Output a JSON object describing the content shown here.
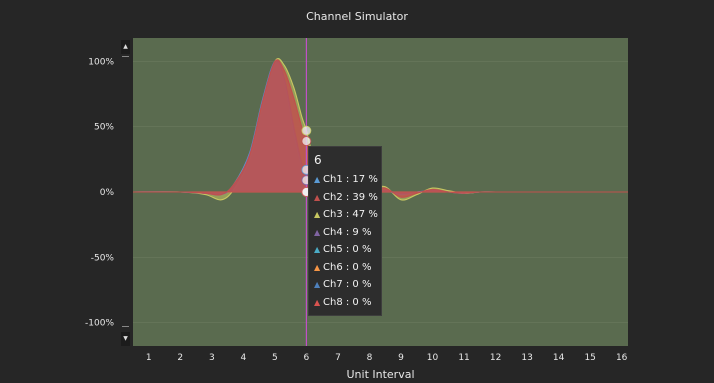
{
  "window": {
    "title": "Channel Simulator"
  },
  "chart_data": {
    "type": "area",
    "title": "",
    "xlabel": "Unit Interval",
    "ylabel": "",
    "xlim": [
      0.5,
      16.2
    ],
    "ylim": [
      -118,
      118
    ],
    "x_ticks": [
      1,
      2,
      3,
      4,
      5,
      6,
      7,
      8,
      9,
      10,
      11,
      12,
      13,
      14,
      15,
      16
    ],
    "y_ticks": [
      {
        "value": 100,
        "label": "100%"
      },
      {
        "value": 50,
        "label": "50%"
      },
      {
        "value": 0,
        "label": "0%"
      },
      {
        "value": -50,
        "label": "-50%"
      },
      {
        "value": -100,
        "label": "-100%"
      }
    ],
    "cursor_x": 6,
    "series": [
      {
        "name": "Ch1",
        "color": "#5b9bd5",
        "x": [
          0.5,
          2,
          2.8,
          3.3,
          3.7,
          4.2,
          4.6,
          5,
          5.3,
          5.6,
          5.85,
          6,
          6.2,
          6.5,
          7,
          7.5,
          8,
          8.5,
          9,
          9.5,
          10,
          10.5,
          11,
          11.5,
          12,
          13,
          14,
          15,
          16.2
        ],
        "y": [
          0,
          0,
          -1,
          -2,
          6,
          30,
          70,
          100,
          85,
          45,
          20,
          17,
          7,
          1,
          -2,
          -1,
          0,
          1,
          -2,
          0,
          1,
          0,
          -1,
          0,
          0,
          0,
          0,
          0,
          0
        ]
      },
      {
        "name": "Ch2",
        "color": "#c0504d",
        "x": [
          0.5,
          2,
          2.8,
          3.3,
          3.7,
          4.2,
          4.6,
          5,
          5.3,
          5.6,
          5.85,
          6,
          6.2,
          6.5,
          7,
          7.5,
          8,
          8.5,
          9,
          9.5,
          10,
          10.5,
          11,
          11.5,
          12,
          13,
          14,
          15,
          16.2
        ],
        "y": [
          0,
          0,
          -1,
          -2,
          6,
          28,
          68,
          100,
          93,
          72,
          50,
          39,
          20,
          5,
          -2,
          -1,
          1,
          3,
          -4,
          -1,
          2,
          0,
          -1,
          0,
          0,
          0,
          0,
          0,
          0
        ]
      },
      {
        "name": "Ch3",
        "color": "#c8c862",
        "x": [
          0.5,
          2,
          2.8,
          3.3,
          3.7,
          4.2,
          4.6,
          5,
          5.3,
          5.6,
          5.85,
          6,
          6.2,
          6.5,
          7,
          7.5,
          8,
          8.5,
          9,
          9.5,
          10,
          10.5,
          11,
          11.5,
          12,
          13,
          14,
          15,
          16.2
        ],
        "y": [
          0,
          0,
          -2,
          -6,
          2,
          25,
          66,
          100,
          97,
          80,
          58,
          47,
          28,
          8,
          -3,
          -2,
          2,
          4,
          -6,
          -2,
          3,
          1,
          -1,
          0,
          0,
          0,
          0,
          0,
          0
        ]
      },
      {
        "name": "Ch4",
        "color": "#8064a2",
        "x": [
          0.5,
          2,
          2.8,
          3.3,
          3.7,
          4.2,
          4.6,
          5,
          5.3,
          5.6,
          5.85,
          6,
          6.2,
          6.5,
          7,
          7.5,
          8,
          8.5,
          9,
          9.5,
          10,
          10.5,
          11,
          11.5,
          12,
          13,
          14,
          15,
          16.2
        ],
        "y": [
          0,
          0,
          -1,
          -2,
          5,
          29,
          69,
          100,
          87,
          50,
          22,
          9,
          3,
          1,
          -1,
          0,
          0,
          1,
          -1,
          0,
          1,
          0,
          0,
          0,
          0,
          0,
          0,
          0,
          0
        ]
      },
      {
        "name": "Ch5",
        "color": "#4bacc6",
        "x": [
          0.5,
          2,
          3,
          4,
          5,
          6,
          7,
          8,
          9,
          10,
          11,
          12,
          13,
          14,
          15,
          16.2
        ],
        "y": [
          0,
          0,
          0,
          0,
          0,
          0,
          0,
          0,
          0,
          0,
          0,
          0,
          0,
          0,
          0,
          0
        ]
      },
      {
        "name": "Ch6",
        "color": "#f79646",
        "x": [
          0.5,
          2,
          3,
          4,
          5,
          6,
          7,
          8,
          9,
          10,
          11,
          12,
          13,
          14,
          15,
          16.2
        ],
        "y": [
          0,
          0,
          0,
          0,
          0,
          0,
          0,
          0,
          0,
          0,
          0,
          0,
          0,
          0,
          0,
          0
        ]
      },
      {
        "name": "Ch7",
        "color": "#4f81bd",
        "x": [
          0.5,
          2,
          3,
          4,
          5,
          6,
          7,
          8,
          9,
          10,
          11,
          12,
          13,
          14,
          15,
          16.2
        ],
        "y": [
          0,
          0,
          0,
          0,
          0,
          0,
          0,
          0,
          0,
          0,
          0,
          0,
          0,
          0,
          0,
          0
        ]
      },
      {
        "name": "Ch8",
        "color": "#d9534f",
        "x": [
          0.5,
          2,
          3,
          4,
          5,
          6,
          7,
          8,
          9,
          10,
          11,
          12,
          13,
          14,
          15,
          16.2
        ],
        "y": [
          0,
          0,
          0,
          0,
          0,
          0,
          0,
          0,
          0,
          0,
          0,
          0,
          0,
          0,
          0,
          0
        ]
      }
    ]
  },
  "tooltip": {
    "header": "6",
    "marker": "▲",
    "rows": [
      {
        "text": "Ch1 : 17 %",
        "color": "#5b9bd5"
      },
      {
        "text": "Ch2 : 39 %",
        "color": "#c0504d"
      },
      {
        "text": "Ch3 : 47 %",
        "color": "#c8c862"
      },
      {
        "text": "Ch4 : 9 %",
        "color": "#8064a2"
      },
      {
        "text": "Ch5 : 0 %",
        "color": "#4bacc6"
      },
      {
        "text": "Ch6 : 0 %",
        "color": "#f79646"
      },
      {
        "text": "Ch7 : 0 %",
        "color": "#4f81bd"
      },
      {
        "text": "Ch8 : 0 %",
        "color": "#d9534f"
      }
    ]
  },
  "scrollbar": {
    "up_icon": "▲",
    "down_icon": "▼"
  },
  "colors": {
    "plot_bg": "#5a6b4f",
    "cursor": "#c050c8",
    "gridline": "#6e7e62"
  }
}
